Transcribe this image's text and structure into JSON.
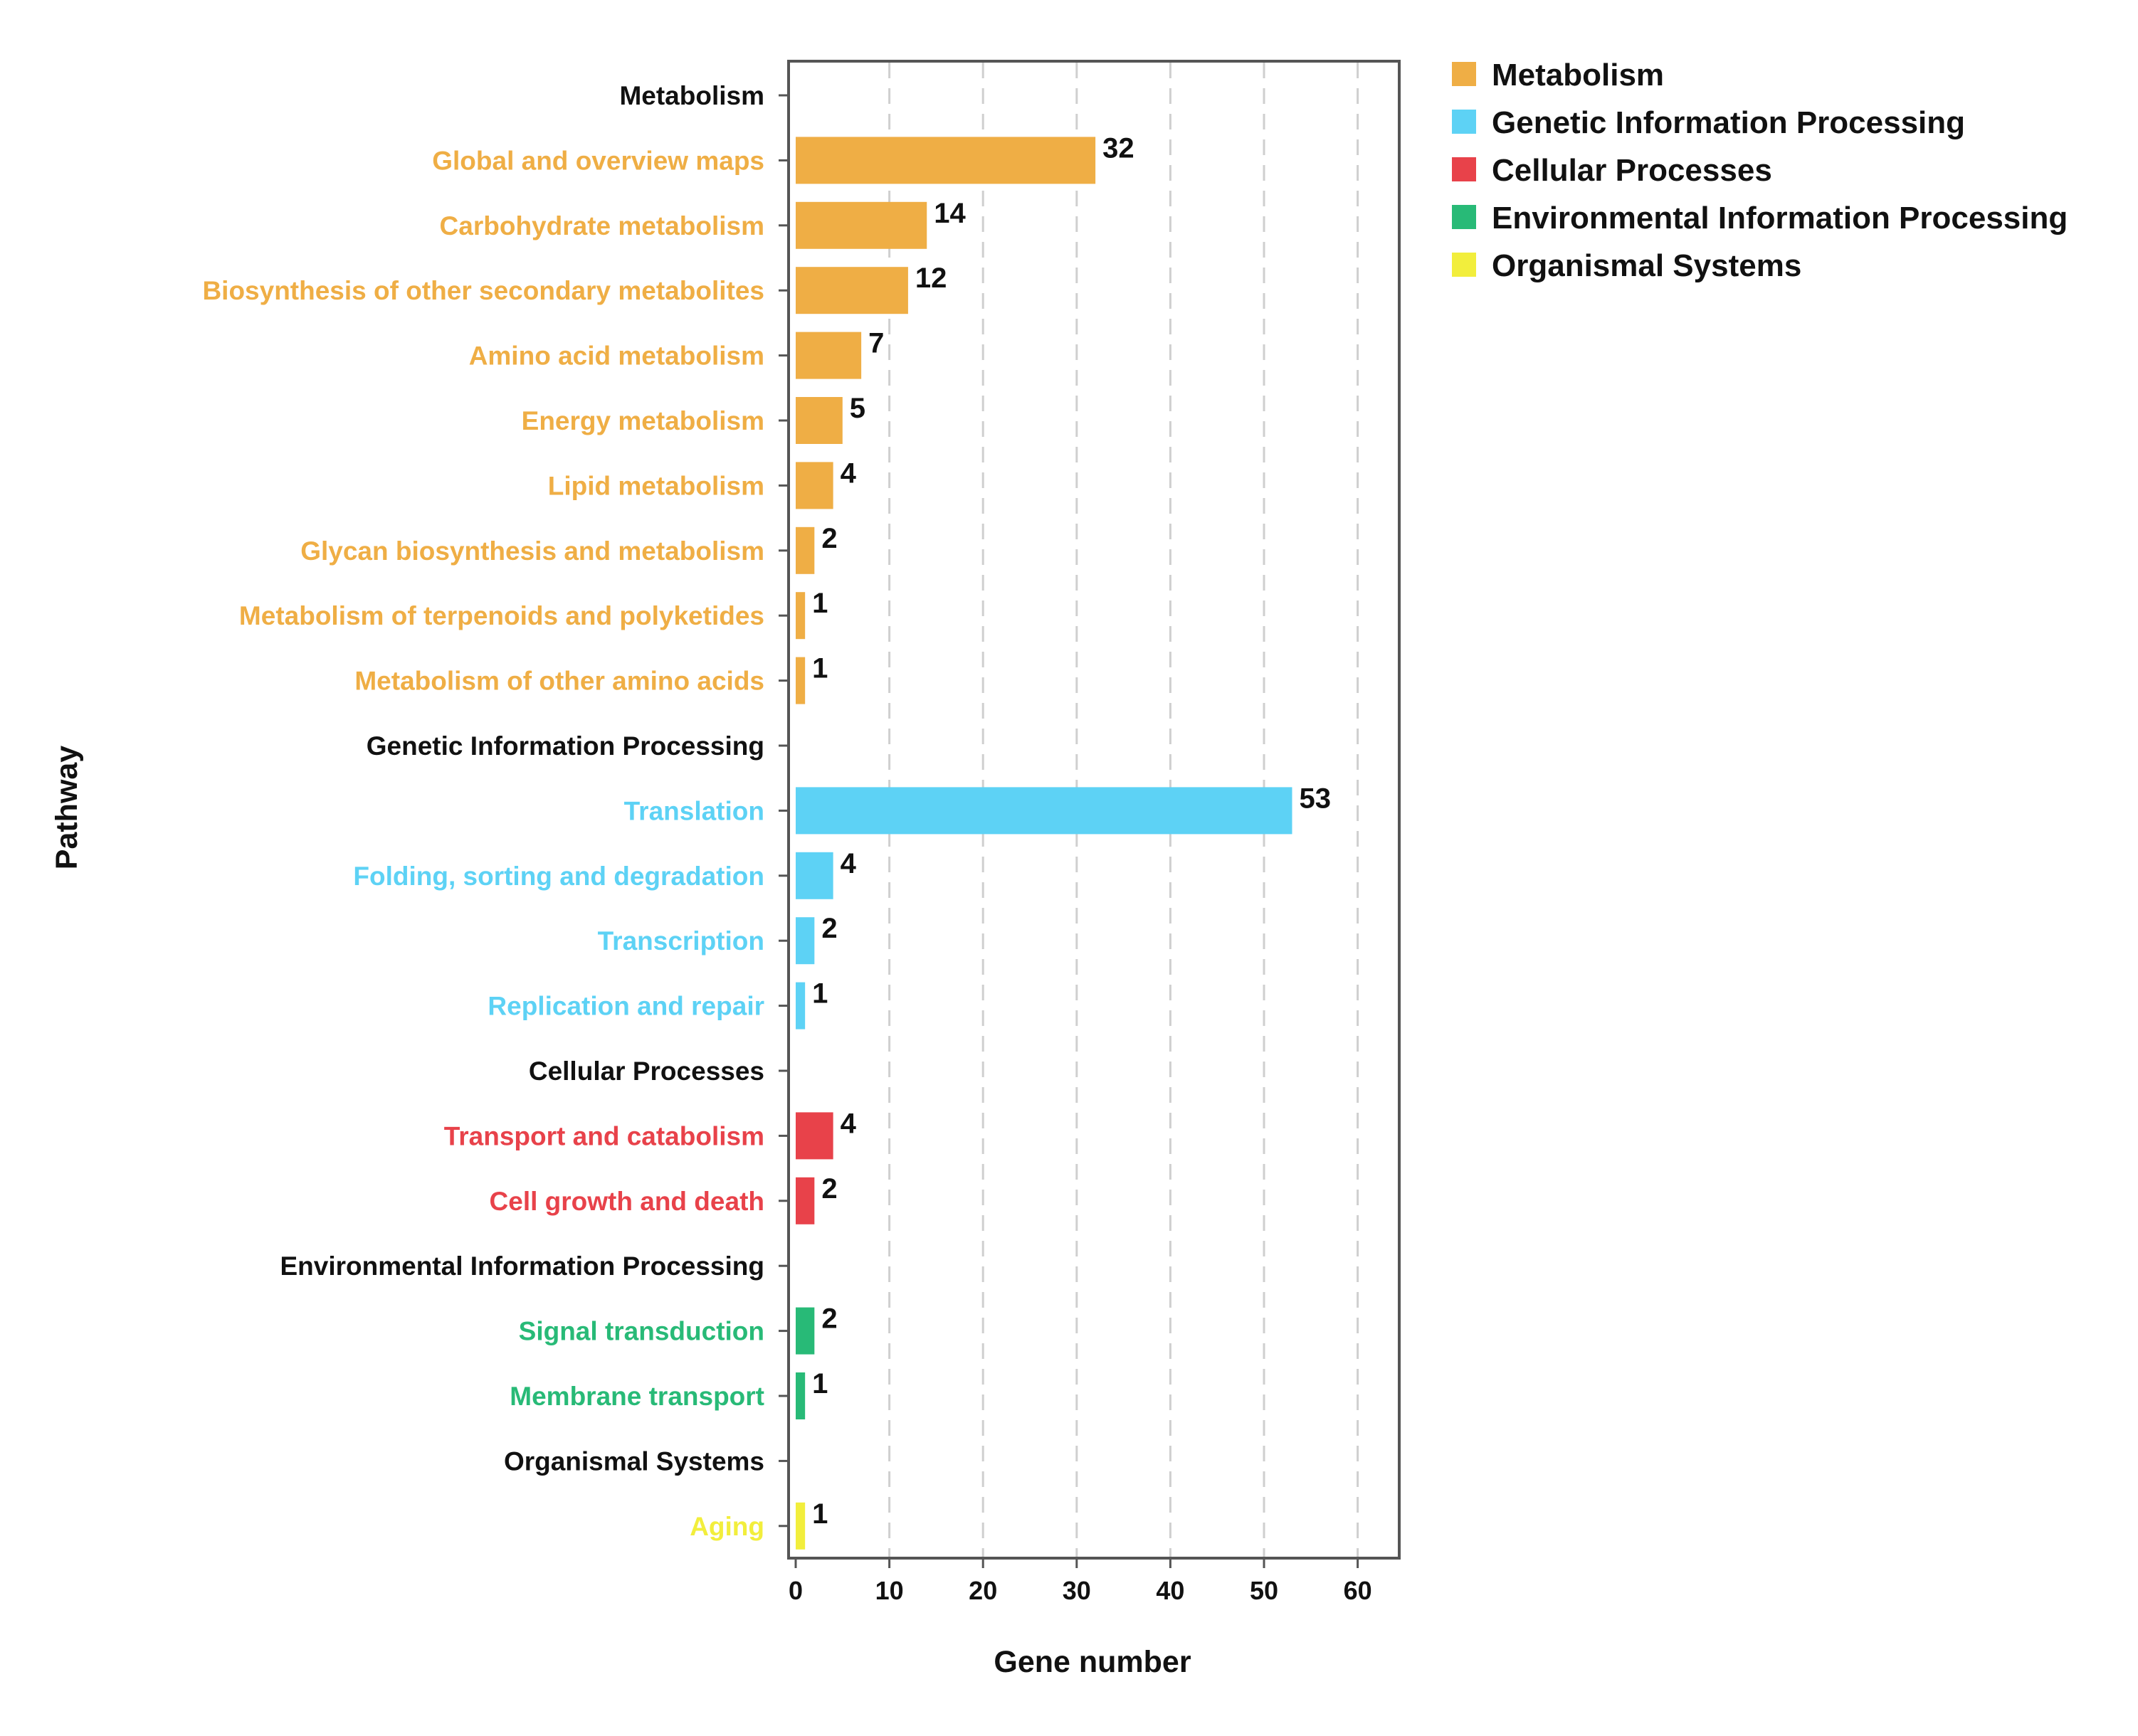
{
  "chart_data": {
    "type": "bar",
    "orientation": "horizontal",
    "xlabel": "Gene number",
    "ylabel": "Pathway",
    "xlim": [
      0,
      64
    ],
    "xticks": [
      0,
      10,
      20,
      30,
      40,
      50,
      60
    ],
    "grid": "vertical dashed",
    "legend_position": "top-right",
    "groups": [
      {
        "name": "Metabolism",
        "color": "#EFAE45"
      },
      {
        "name": "Genetic Information Processing",
        "color": "#5DD2F5"
      },
      {
        "name": "Cellular Processes",
        "color": "#E8424A"
      },
      {
        "name": "Environmental Information Processing",
        "color": "#28BA77"
      },
      {
        "name": "Organismal Systems",
        "color": "#F2EE3C"
      }
    ],
    "rows": [
      {
        "label": "Metabolism",
        "header": true,
        "group": 0
      },
      {
        "label": "Global and overview maps",
        "value": 32,
        "group": 0
      },
      {
        "label": "Carbohydrate metabolism",
        "value": 14,
        "group": 0
      },
      {
        "label": "Biosynthesis of other secondary metabolites",
        "value": 12,
        "group": 0
      },
      {
        "label": "Amino acid metabolism",
        "value": 7,
        "group": 0
      },
      {
        "label": "Energy metabolism",
        "value": 5,
        "group": 0
      },
      {
        "label": "Lipid metabolism",
        "value": 4,
        "group": 0
      },
      {
        "label": "Glycan biosynthesis and metabolism",
        "value": 2,
        "group": 0
      },
      {
        "label": "Metabolism of terpenoids and polyketides",
        "value": 1,
        "group": 0
      },
      {
        "label": "Metabolism of other amino acids",
        "value": 1,
        "group": 0
      },
      {
        "label": "Genetic Information Processing",
        "header": true,
        "group": 1
      },
      {
        "label": "Translation",
        "value": 53,
        "group": 1
      },
      {
        "label": "Folding, sorting and degradation",
        "value": 4,
        "group": 1
      },
      {
        "label": "Transcription",
        "value": 2,
        "group": 1
      },
      {
        "label": "Replication and repair",
        "value": 1,
        "group": 1
      },
      {
        "label": "Cellular Processes",
        "header": true,
        "group": 2
      },
      {
        "label": "Transport and catabolism",
        "value": 4,
        "group": 2
      },
      {
        "label": "Cell growth and death",
        "value": 2,
        "group": 2
      },
      {
        "label": "Environmental Information Processing",
        "header": true,
        "group": 3
      },
      {
        "label": "Signal transduction",
        "value": 2,
        "group": 3
      },
      {
        "label": "Membrane transport",
        "value": 1,
        "group": 3
      },
      {
        "label": "Organismal Systems",
        "header": true,
        "group": 4
      },
      {
        "label": "Aging",
        "value": 1,
        "group": 4
      }
    ]
  }
}
